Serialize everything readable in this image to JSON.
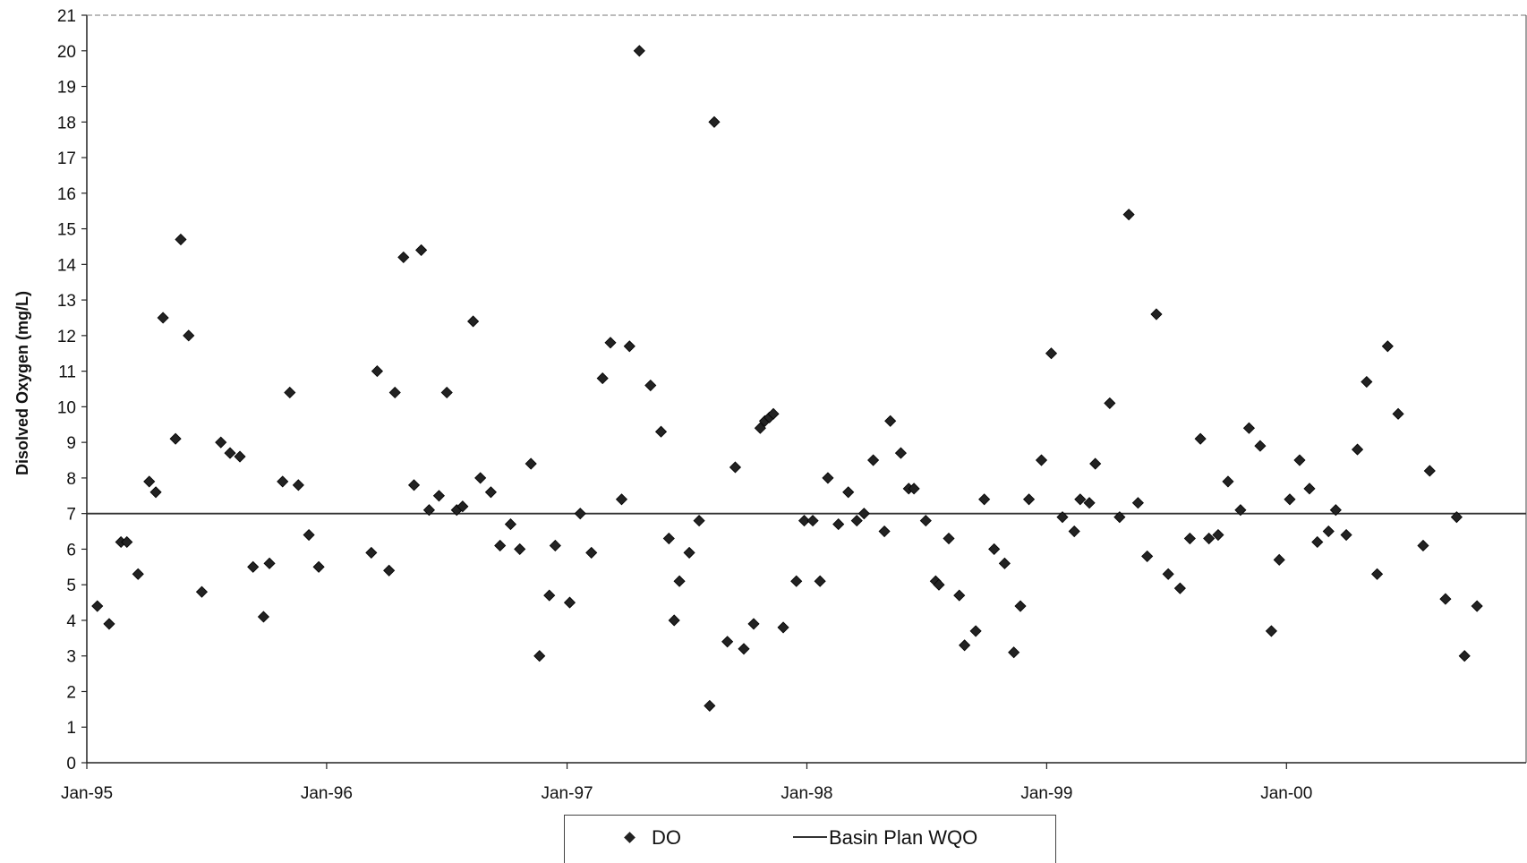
{
  "chart_data": {
    "type": "scatter",
    "title": "",
    "xlabel": "",
    "ylabel": "Disolved Oxygen (mg/L)",
    "x_ticks": [
      "Jan-95",
      "Jan-96",
      "Jan-97",
      "Jan-98",
      "Jan-99",
      "Jan-00"
    ],
    "xlim": [
      "1995-01-01",
      "2000-12-31"
    ],
    "ylim": [
      0,
      21
    ],
    "y_ticks": [
      0,
      1,
      2,
      3,
      4,
      5,
      6,
      7,
      8,
      9,
      10,
      11,
      12,
      13,
      14,
      15,
      16,
      17,
      18,
      19,
      20,
      21
    ],
    "grid": false,
    "legend": "bottom-center",
    "series": [
      {
        "name": "DO",
        "marker": "diamond",
        "color": "#222222",
        "points": [
          {
            "x": "1995-01-17",
            "y": 4.4
          },
          {
            "x": "1995-02-04",
            "y": 3.9
          },
          {
            "x": "1995-02-22",
            "y": 6.2
          },
          {
            "x": "1995-03-03",
            "y": 6.2
          },
          {
            "x": "1995-03-20",
            "y": 5.3
          },
          {
            "x": "1995-04-06",
            "y": 7.9
          },
          {
            "x": "1995-04-16",
            "y": 7.6
          },
          {
            "x": "1995-04-27",
            "y": 12.5
          },
          {
            "x": "1995-05-16",
            "y": 9.1
          },
          {
            "x": "1995-05-24",
            "y": 14.7
          },
          {
            "x": "1995-06-05",
            "y": 12.0
          },
          {
            "x": "1995-06-25",
            "y": 4.8
          },
          {
            "x": "1995-07-24",
            "y": 9.0
          },
          {
            "x": "1995-08-07",
            "y": 8.7
          },
          {
            "x": "1995-08-22",
            "y": 8.6
          },
          {
            "x": "1995-09-11",
            "y": 5.5
          },
          {
            "x": "1995-09-27",
            "y": 4.1
          },
          {
            "x": "1995-10-06",
            "y": 5.6
          },
          {
            "x": "1995-10-26",
            "y": 7.9
          },
          {
            "x": "1995-11-06",
            "y": 10.4
          },
          {
            "x": "1995-11-19",
            "y": 7.8
          },
          {
            "x": "1995-12-05",
            "y": 6.4
          },
          {
            "x": "1995-12-20",
            "y": 5.5
          },
          {
            "x": "1996-03-09",
            "y": 5.9
          },
          {
            "x": "1996-03-18",
            "y": 11.0
          },
          {
            "x": "1996-04-05",
            "y": 5.4
          },
          {
            "x": "1996-04-14",
            "y": 10.4
          },
          {
            "x": "1996-04-27",
            "y": 14.2
          },
          {
            "x": "1996-05-13",
            "y": 7.8
          },
          {
            "x": "1996-05-24",
            "y": 14.4
          },
          {
            "x": "1996-06-05",
            "y": 7.1
          },
          {
            "x": "1996-06-20",
            "y": 7.5
          },
          {
            "x": "1996-07-02",
            "y": 10.4
          },
          {
            "x": "1996-07-17",
            "y": 7.1
          },
          {
            "x": "1996-07-26",
            "y": 7.2
          },
          {
            "x": "1996-08-11",
            "y": 12.4
          },
          {
            "x": "1996-08-22",
            "y": 8.0
          },
          {
            "x": "1996-09-07",
            "y": 7.6
          },
          {
            "x": "1996-09-21",
            "y": 6.1
          },
          {
            "x": "1996-10-07",
            "y": 6.7
          },
          {
            "x": "1996-10-21",
            "y": 6.0
          },
          {
            "x": "1996-11-07",
            "y": 8.4
          },
          {
            "x": "1996-11-20",
            "y": 3.0
          },
          {
            "x": "1996-12-05",
            "y": 4.7
          },
          {
            "x": "1996-12-14",
            "y": 6.1
          },
          {
            "x": "1997-01-05",
            "y": 4.5
          },
          {
            "x": "1997-01-21",
            "y": 7.0
          },
          {
            "x": "1997-02-07",
            "y": 5.9
          },
          {
            "x": "1997-02-24",
            "y": 10.8
          },
          {
            "x": "1997-03-08",
            "y": 11.8
          },
          {
            "x": "1997-03-25",
            "y": 7.4
          },
          {
            "x": "1997-04-06",
            "y": 11.7
          },
          {
            "x": "1997-04-21",
            "y": 20.0
          },
          {
            "x": "1997-05-08",
            "y": 10.6
          },
          {
            "x": "1997-05-24",
            "y": 9.3
          },
          {
            "x": "1997-06-05",
            "y": 6.3
          },
          {
            "x": "1997-06-13",
            "y": 4.0
          },
          {
            "x": "1997-06-21",
            "y": 5.1
          },
          {
            "x": "1997-07-06",
            "y": 5.9
          },
          {
            "x": "1997-07-21",
            "y": 6.8
          },
          {
            "x": "1997-08-06",
            "y": 1.6
          },
          {
            "x": "1997-08-13",
            "y": 18.0
          },
          {
            "x": "1997-09-02",
            "y": 3.4
          },
          {
            "x": "1997-09-14",
            "y": 8.3
          },
          {
            "x": "1997-09-27",
            "y": 3.2
          },
          {
            "x": "1997-10-12",
            "y": 3.9
          },
          {
            "x": "1997-10-22",
            "y": 9.4
          },
          {
            "x": "1997-10-29",
            "y": 9.6
          },
          {
            "x": "1997-11-05",
            "y": 9.7
          },
          {
            "x": "1997-11-11",
            "y": 9.8
          },
          {
            "x": "1997-11-26",
            "y": 3.8
          },
          {
            "x": "1997-12-16",
            "y": 5.1
          },
          {
            "x": "1997-12-28",
            "y": 6.8
          },
          {
            "x": "1998-01-10",
            "y": 6.8
          },
          {
            "x": "1998-01-21",
            "y": 5.1
          },
          {
            "x": "1998-02-02",
            "y": 8.0
          },
          {
            "x": "1998-02-18",
            "y": 6.7
          },
          {
            "x": "1998-03-05",
            "y": 7.6
          },
          {
            "x": "1998-03-18",
            "y": 6.8
          },
          {
            "x": "1998-03-29",
            "y": 7.0
          },
          {
            "x": "1998-04-12",
            "y": 8.5
          },
          {
            "x": "1998-04-29",
            "y": 6.5
          },
          {
            "x": "1998-05-08",
            "y": 9.6
          },
          {
            "x": "1998-05-24",
            "y": 8.7
          },
          {
            "x": "1998-06-05",
            "y": 7.7
          },
          {
            "x": "1998-06-13",
            "y": 7.7
          },
          {
            "x": "1998-07-01",
            "y": 6.8
          },
          {
            "x": "1998-07-16",
            "y": 5.1
          },
          {
            "x": "1998-07-21",
            "y": 5.0
          },
          {
            "x": "1998-08-05",
            "y": 6.3
          },
          {
            "x": "1998-08-21",
            "y": 4.7
          },
          {
            "x": "1998-08-29",
            "y": 3.3
          },
          {
            "x": "1998-09-15",
            "y": 3.7
          },
          {
            "x": "1998-09-28",
            "y": 7.4
          },
          {
            "x": "1998-10-13",
            "y": 6.0
          },
          {
            "x": "1998-10-29",
            "y": 5.6
          },
          {
            "x": "1998-11-12",
            "y": 3.1
          },
          {
            "x": "1998-11-22",
            "y": 4.4
          },
          {
            "x": "1998-12-05",
            "y": 7.4
          },
          {
            "x": "1998-12-24",
            "y": 8.5
          },
          {
            "x": "1999-01-08",
            "y": 11.5
          },
          {
            "x": "1999-01-25",
            "y": 6.9
          },
          {
            "x": "1999-02-12",
            "y": 6.5
          },
          {
            "x": "1999-02-21",
            "y": 7.4
          },
          {
            "x": "1999-03-07",
            "y": 7.3
          },
          {
            "x": "1999-03-16",
            "y": 8.4
          },
          {
            "x": "1999-04-07",
            "y": 10.1
          },
          {
            "x": "1999-04-22",
            "y": 6.9
          },
          {
            "x": "1999-05-06",
            "y": 15.4
          },
          {
            "x": "1999-05-20",
            "y": 7.3
          },
          {
            "x": "1999-06-03",
            "y": 5.8
          },
          {
            "x": "1999-06-17",
            "y": 12.6
          },
          {
            "x": "1999-07-05",
            "y": 5.3
          },
          {
            "x": "1999-07-23",
            "y": 4.9
          },
          {
            "x": "1999-08-07",
            "y": 6.3
          },
          {
            "x": "1999-08-23",
            "y": 9.1
          },
          {
            "x": "1999-09-05",
            "y": 6.3
          },
          {
            "x": "1999-09-19",
            "y": 6.4
          },
          {
            "x": "1999-10-04",
            "y": 7.9
          },
          {
            "x": "1999-10-23",
            "y": 7.1
          },
          {
            "x": "1999-11-05",
            "y": 9.4
          },
          {
            "x": "1999-11-22",
            "y": 8.9
          },
          {
            "x": "1999-12-09",
            "y": 3.7
          },
          {
            "x": "1999-12-21",
            "y": 5.7
          },
          {
            "x": "2000-01-06",
            "y": 7.4
          },
          {
            "x": "2000-01-21",
            "y": 8.5
          },
          {
            "x": "2000-02-05",
            "y": 7.7
          },
          {
            "x": "2000-02-17",
            "y": 6.2
          },
          {
            "x": "2000-03-05",
            "y": 6.5
          },
          {
            "x": "2000-03-16",
            "y": 7.1
          },
          {
            "x": "2000-04-01",
            "y": 6.4
          },
          {
            "x": "2000-04-18",
            "y": 8.8
          },
          {
            "x": "2000-05-02",
            "y": 10.7
          },
          {
            "x": "2000-05-18",
            "y": 5.3
          },
          {
            "x": "2000-06-03",
            "y": 11.7
          },
          {
            "x": "2000-06-19",
            "y": 9.8
          },
          {
            "x": "2000-07-27",
            "y": 6.1
          },
          {
            "x": "2000-08-06",
            "y": 8.2
          },
          {
            "x": "2000-08-30",
            "y": 4.6
          },
          {
            "x": "2000-09-16",
            "y": 6.9
          },
          {
            "x": "2000-09-28",
            "y": 3.0
          },
          {
            "x": "2000-10-17",
            "y": 4.4
          }
        ]
      },
      {
        "name": "Basin Plan WQO",
        "type": "line",
        "color": "#333333",
        "y": 7
      }
    ]
  }
}
